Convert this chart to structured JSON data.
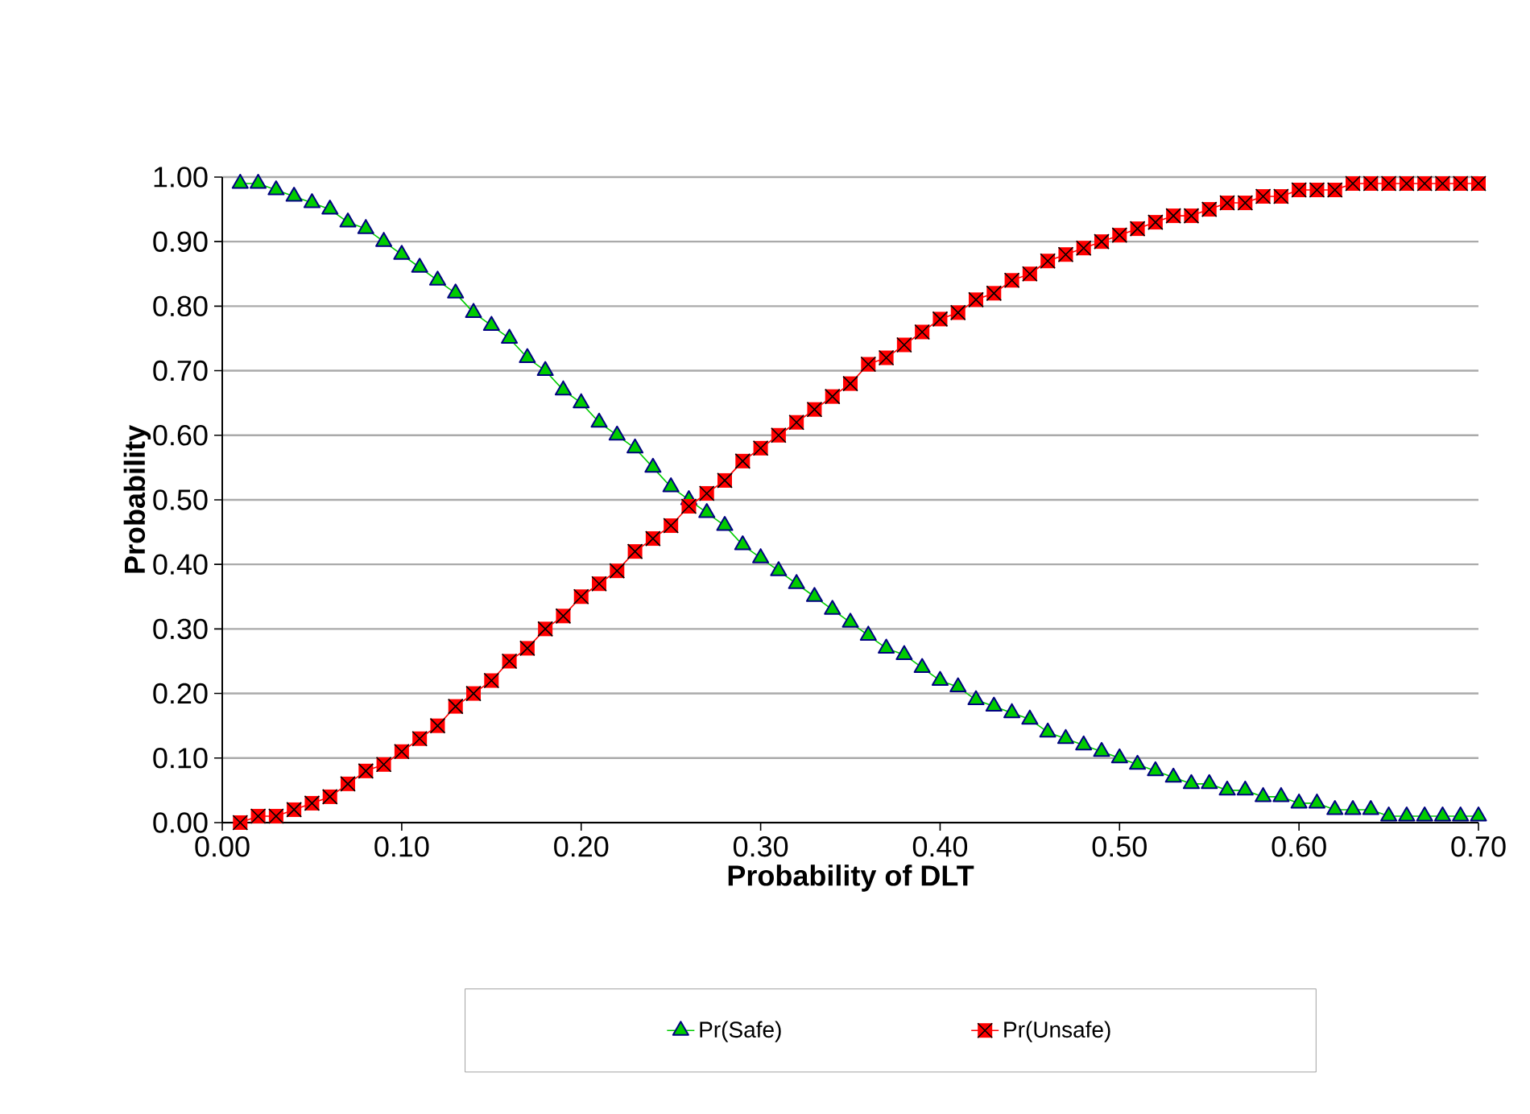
{
  "chart_data": {
    "type": "line",
    "xlabel": "Probability of DLT",
    "ylabel": "Probability",
    "x": [
      0.01,
      0.02,
      0.03,
      0.04,
      0.05,
      0.06,
      0.07,
      0.08,
      0.09,
      0.1,
      0.11,
      0.12,
      0.13,
      0.14,
      0.15,
      0.16,
      0.17,
      0.18,
      0.19,
      0.2,
      0.21,
      0.22,
      0.23,
      0.24,
      0.25,
      0.26,
      0.27,
      0.28,
      0.29,
      0.3,
      0.31,
      0.32,
      0.33,
      0.34,
      0.35,
      0.36,
      0.37,
      0.38,
      0.39,
      0.4,
      0.41,
      0.42,
      0.43,
      0.44,
      0.45,
      0.46,
      0.47,
      0.48,
      0.49,
      0.5,
      0.51,
      0.52,
      0.53,
      0.54,
      0.55,
      0.56,
      0.57,
      0.58,
      0.59,
      0.6,
      0.61,
      0.62,
      0.63,
      0.64,
      0.65,
      0.66,
      0.67,
      0.68,
      0.69,
      0.7
    ],
    "series": [
      {
        "name": "Pr(Safe)",
        "color": "#00cc00",
        "marker": "triangle",
        "values": [
          0.99,
          0.99,
          0.98,
          0.97,
          0.96,
          0.95,
          0.93,
          0.92,
          0.9,
          0.88,
          0.86,
          0.84,
          0.82,
          0.79,
          0.77,
          0.75,
          0.72,
          0.7,
          0.67,
          0.65,
          0.62,
          0.6,
          0.58,
          0.55,
          0.52,
          0.5,
          0.48,
          0.46,
          0.43,
          0.41,
          0.39,
          0.37,
          0.35,
          0.33,
          0.31,
          0.29,
          0.27,
          0.26,
          0.24,
          0.22,
          0.21,
          0.19,
          0.18,
          0.17,
          0.16,
          0.14,
          0.13,
          0.12,
          0.11,
          0.1,
          0.09,
          0.08,
          0.07,
          0.06,
          0.06,
          0.05,
          0.05,
          0.04,
          0.04,
          0.03,
          0.03,
          0.02,
          0.02,
          0.02,
          0.01,
          0.01,
          0.01,
          0.01,
          0.01,
          0.01
        ]
      },
      {
        "name": "Pr(Unsafe)",
        "color": "#ff0000",
        "marker": "square",
        "values": [
          0.0,
          0.01,
          0.01,
          0.02,
          0.03,
          0.04,
          0.06,
          0.08,
          0.09,
          0.11,
          0.13,
          0.15,
          0.18,
          0.2,
          0.22,
          0.25,
          0.27,
          0.3,
          0.32,
          0.35,
          0.37,
          0.39,
          0.42,
          0.44,
          0.46,
          0.49,
          0.51,
          0.53,
          0.56,
          0.58,
          0.6,
          0.62,
          0.64,
          0.66,
          0.68,
          0.71,
          0.72,
          0.74,
          0.76,
          0.78,
          0.79,
          0.81,
          0.82,
          0.84,
          0.85,
          0.87,
          0.88,
          0.89,
          0.9,
          0.91,
          0.92,
          0.93,
          0.94,
          0.94,
          0.95,
          0.96,
          0.96,
          0.97,
          0.97,
          0.98,
          0.98,
          0.98,
          0.99,
          0.99,
          0.99,
          0.99,
          0.99,
          0.99,
          0.99,
          0.99
        ]
      }
    ],
    "xlim": [
      0,
      0.7
    ],
    "ylim": [
      0,
      1
    ],
    "xticks": [
      {
        "value": 0,
        "label": "0.00"
      },
      {
        "value": 0.1,
        "label": "0.10"
      },
      {
        "value": 0.2,
        "label": "0.20"
      },
      {
        "value": 0.3,
        "label": "0.30"
      },
      {
        "value": 0.4,
        "label": "0.40"
      },
      {
        "value": 0.5,
        "label": "0.50"
      },
      {
        "value": 0.6,
        "label": "0.60"
      },
      {
        "value": 0.7,
        "label": "0.70"
      }
    ],
    "yticks": [
      {
        "value": 0,
        "label": "0.00"
      },
      {
        "value": 0.1,
        "label": "0.10"
      },
      {
        "value": 0.2,
        "label": "0.20"
      },
      {
        "value": 0.3,
        "label": "0.30"
      },
      {
        "value": 0.4,
        "label": "0.40"
      },
      {
        "value": 0.5,
        "label": "0.50"
      },
      {
        "value": 0.6,
        "label": "0.60"
      },
      {
        "value": 0.7,
        "label": "0.70"
      },
      {
        "value": 0.8,
        "label": "0.80"
      },
      {
        "value": 0.9,
        "label": "0.90"
      },
      {
        "value": 1,
        "label": "1.00"
      }
    ],
    "grid": "y",
    "legend": "bottom",
    "line_style": "solid"
  }
}
